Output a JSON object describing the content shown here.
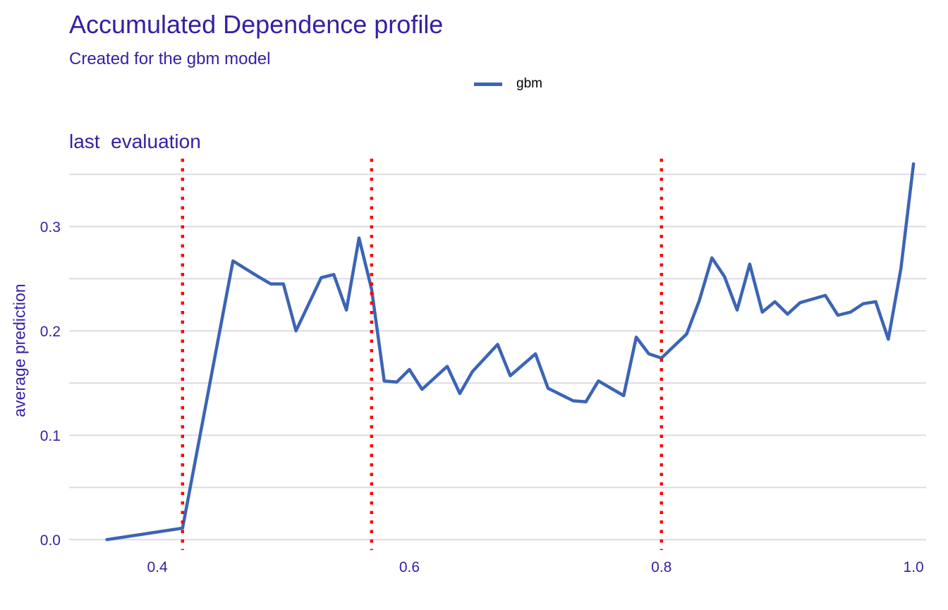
{
  "chart_data": {
    "type": "line",
    "title": "Accumulated Dependence profile",
    "subtitle": "Created for the gbm model",
    "panel_title": "last  evaluation",
    "xlabel": "",
    "ylabel": "average prediction",
    "xlim": [
      0.33,
      1.01
    ],
    "ylim": [
      -0.01,
      0.365
    ],
    "x_ticks": [
      0.4,
      0.6,
      0.8,
      1.0
    ],
    "x_tick_labels": [
      "0.4",
      "0.6",
      "0.8",
      "1.0"
    ],
    "y_ticks": [
      0.0,
      0.1,
      0.2,
      0.3
    ],
    "y_tick_labels": [
      "0.0",
      "0.1",
      "0.2",
      "0.3"
    ],
    "y_minor_gridlines": [
      0.05,
      0.15,
      0.25,
      0.35
    ],
    "grid": true,
    "legend_position": "top",
    "vertical_lines": {
      "x": [
        0.42,
        0.57,
        0.8
      ],
      "color": "#ff0000",
      "style": "dotted"
    },
    "series": [
      {
        "name": "gbm",
        "color": "#3b64b5",
        "x": [
          0.36,
          0.42,
          0.46,
          0.48,
          0.49,
          0.5,
          0.51,
          0.53,
          0.54,
          0.55,
          0.56,
          0.57,
          0.58,
          0.59,
          0.6,
          0.61,
          0.63,
          0.64,
          0.65,
          0.67,
          0.68,
          0.7,
          0.71,
          0.73,
          0.74,
          0.75,
          0.77,
          0.78,
          0.79,
          0.8,
          0.82,
          0.83,
          0.84,
          0.85,
          0.86,
          0.87,
          0.88,
          0.89,
          0.9,
          0.91,
          0.93,
          0.94,
          0.95,
          0.96,
          0.97,
          0.98,
          0.99,
          1.0
        ],
        "y": [
          0.0,
          0.011,
          0.267,
          0.252,
          0.245,
          0.245,
          0.2,
          0.251,
          0.254,
          0.22,
          0.289,
          0.24,
          0.152,
          0.151,
          0.163,
          0.144,
          0.166,
          0.14,
          0.161,
          0.187,
          0.157,
          0.178,
          0.145,
          0.133,
          0.132,
          0.152,
          0.138,
          0.194,
          0.178,
          0.174,
          0.197,
          0.229,
          0.27,
          0.252,
          0.22,
          0.264,
          0.218,
          0.228,
          0.216,
          0.227,
          0.234,
          0.215,
          0.218,
          0.226,
          0.228,
          0.192,
          0.26,
          0.36
        ]
      }
    ]
  }
}
